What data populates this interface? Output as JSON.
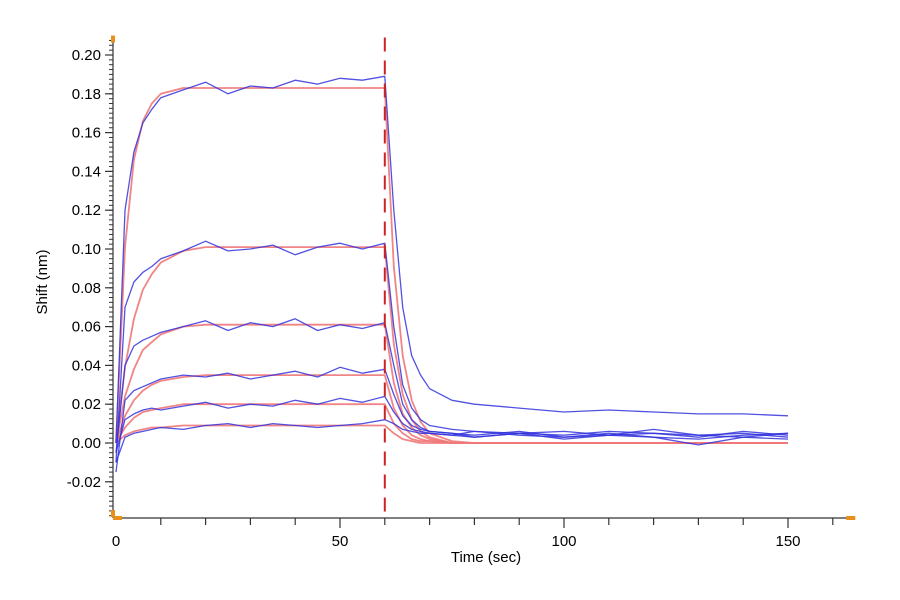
{
  "chart_data": {
    "type": "line",
    "title": "",
    "xlabel": "Time (sec)",
    "ylabel": "Shift (nm)",
    "xlim": [
      0,
      165
    ],
    "ylim": [
      -0.0387,
      0.209
    ],
    "x_ticks": [
      0,
      50,
      100,
      150
    ],
    "x_tick_labels": [
      "0",
      "50",
      "100",
      "150"
    ],
    "y_ticks": [
      -0.02,
      0.0,
      0.02,
      0.04,
      0.06,
      0.08,
      0.1,
      0.12,
      0.14,
      0.16,
      0.18,
      0.2
    ],
    "y_tick_labels": [
      "-0.02",
      "0.00",
      "0.02",
      "0.04",
      "0.06",
      "0.08",
      "0.10",
      "0.12",
      "0.14",
      "0.16",
      "0.18",
      "0.20"
    ],
    "grid": false,
    "legend": "none",
    "vertical_marker": {
      "x": 60,
      "style": "dashed",
      "color": "#cc2222"
    },
    "colors": {
      "data": "#3333dd",
      "fit": "#f07878",
      "axis": "#333333",
      "corner_marker": "#e8901a"
    },
    "x": [
      0,
      2,
      4,
      6,
      8,
      10,
      15,
      20,
      25,
      30,
      35,
      40,
      45,
      50,
      55,
      60,
      62,
      64,
      66,
      68,
      70,
      75,
      80,
      90,
      100,
      110,
      120,
      130,
      140,
      150
    ],
    "series": [
      {
        "kind": "data",
        "values": [
          0,
          0.12,
          0.15,
          0.165,
          0.172,
          0.178,
          0.182,
          0.186,
          0.18,
          0.184,
          0.183,
          0.187,
          0.185,
          0.188,
          0.187,
          0.189,
          0.12,
          0.07,
          0.045,
          0.035,
          0.028,
          0.022,
          0.02,
          0.018,
          0.016,
          0.017,
          0.016,
          0.015,
          0.015,
          0.014
        ]
      },
      {
        "kind": "data",
        "values": [
          -0.01,
          0.07,
          0.083,
          0.088,
          0.091,
          0.095,
          0.099,
          0.104,
          0.099,
          0.1,
          0.102,
          0.097,
          0.101,
          0.103,
          0.1,
          0.103,
          0.06,
          0.03,
          0.018,
          0.012,
          0.009,
          0.007,
          0.006,
          0.005,
          0.004,
          0.006,
          0.005,
          0.004,
          0.003,
          0.005
        ]
      },
      {
        "kind": "data",
        "values": [
          -0.005,
          0.04,
          0.05,
          0.053,
          0.055,
          0.057,
          0.06,
          0.063,
          0.058,
          0.062,
          0.06,
          0.064,
          0.058,
          0.061,
          0.059,
          0.062,
          0.04,
          0.02,
          0.012,
          0.008,
          0.006,
          0.005,
          0.004,
          0.006,
          0.003,
          0.004,
          0.007,
          0.004,
          0.005,
          0.003
        ]
      },
      {
        "kind": "data",
        "values": [
          -0.015,
          0.022,
          0.027,
          0.029,
          0.031,
          0.033,
          0.035,
          0.034,
          0.036,
          0.033,
          0.035,
          0.037,
          0.034,
          0.039,
          0.036,
          0.038,
          0.025,
          0.014,
          0.009,
          0.007,
          0.006,
          0.005,
          0.003,
          0.005,
          0.006,
          0.004,
          0.005,
          0.003,
          0.006,
          0.004
        ]
      },
      {
        "kind": "data",
        "values": [
          -0.005,
          0.012,
          0.015,
          0.017,
          0.018,
          0.017,
          0.019,
          0.021,
          0.018,
          0.02,
          0.019,
          0.022,
          0.02,
          0.023,
          0.021,
          0.024,
          0.016,
          0.01,
          0.007,
          0.006,
          0.005,
          0.004,
          0.006,
          0.004,
          0.003,
          0.005,
          0.003,
          0.002,
          0.004,
          0.005
        ]
      },
      {
        "kind": "data",
        "values": [
          -0.01,
          0.003,
          0.005,
          0.006,
          0.007,
          0.008,
          0.007,
          0.009,
          0.01,
          0.008,
          0.01,
          0.009,
          0.008,
          0.009,
          0.01,
          0.012,
          0.01,
          0.007,
          0.006,
          0.005,
          0.005,
          0.004,
          0.003,
          0.005,
          0.002,
          0.004,
          0.003,
          -0.001,
          0.003,
          0.002
        ]
      },
      {
        "kind": "fit",
        "values": [
          0,
          0.101,
          0.146,
          0.166,
          0.175,
          0.18,
          0.183,
          0.183,
          0.183,
          0.183,
          0.183,
          0.183,
          0.183,
          0.183,
          0.183,
          0.183,
          0.091,
          0.045,
          0.022,
          0.011,
          0.005,
          0.001,
          0,
          0,
          0,
          0,
          0,
          0,
          0,
          0
        ]
      },
      {
        "kind": "fit",
        "values": [
          0,
          0.039,
          0.064,
          0.079,
          0.087,
          0.093,
          0.099,
          0.101,
          0.101,
          0.101,
          0.101,
          0.101,
          0.101,
          0.101,
          0.101,
          0.101,
          0.051,
          0.025,
          0.012,
          0.006,
          0.003,
          0,
          0,
          0,
          0,
          0,
          0,
          0,
          0,
          0
        ]
      },
      {
        "kind": "fit",
        "values": [
          0,
          0.024,
          0.038,
          0.048,
          0.052,
          0.056,
          0.06,
          0.061,
          0.061,
          0.061,
          0.061,
          0.061,
          0.061,
          0.061,
          0.061,
          0.061,
          0.031,
          0.015,
          0.008,
          0.004,
          0.002,
          0,
          0,
          0,
          0,
          0,
          0,
          0,
          0,
          0
        ]
      },
      {
        "kind": "fit",
        "values": [
          0,
          0.014,
          0.022,
          0.027,
          0.03,
          0.032,
          0.034,
          0.035,
          0.035,
          0.035,
          0.035,
          0.035,
          0.035,
          0.035,
          0.035,
          0.035,
          0.018,
          0.009,
          0.004,
          0.002,
          0.001,
          0,
          0,
          0,
          0,
          0,
          0,
          0,
          0,
          0
        ]
      },
      {
        "kind": "fit",
        "values": [
          0,
          0.008,
          0.013,
          0.016,
          0.017,
          0.018,
          0.02,
          0.02,
          0.02,
          0.02,
          0.02,
          0.02,
          0.02,
          0.02,
          0.02,
          0.02,
          0.01,
          0.005,
          0.002,
          0.001,
          0.001,
          0,
          0,
          0,
          0,
          0,
          0,
          0,
          0,
          0
        ]
      },
      {
        "kind": "fit",
        "values": [
          0,
          0.004,
          0.006,
          0.007,
          0.008,
          0.008,
          0.009,
          0.009,
          0.009,
          0.009,
          0.009,
          0.009,
          0.009,
          0.009,
          0.009,
          0.009,
          0.005,
          0.002,
          0.001,
          0,
          0,
          0,
          0,
          0,
          0,
          0,
          0,
          0,
          0,
          0
        ]
      }
    ]
  }
}
